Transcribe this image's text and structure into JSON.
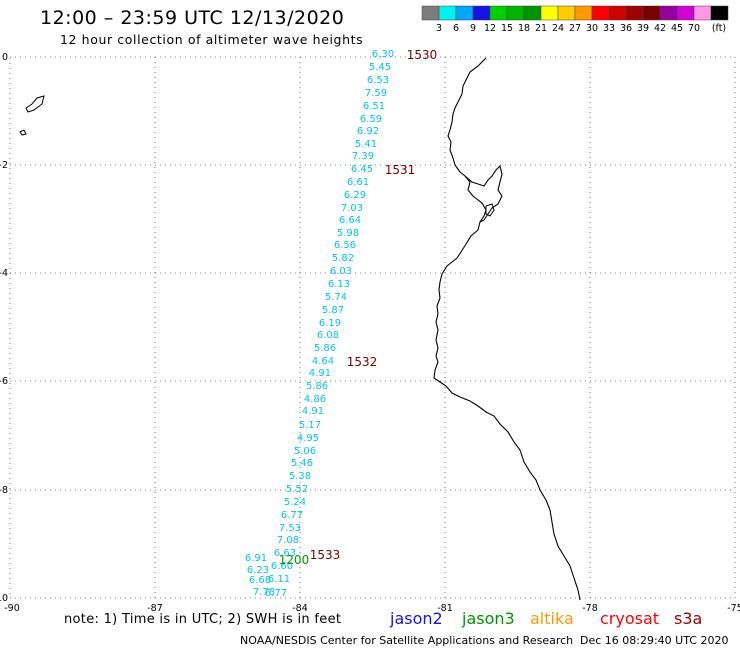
{
  "header": {
    "title": "12:00 – 23:59 UTC 12/13/2020",
    "subtitle": "12 hour collection of altimeter wave heights"
  },
  "colorbar": {
    "colors": [
      "#7d7d7d",
      "#00f2f2",
      "#00a8f5",
      "#1414e6",
      "#00d200",
      "#00b400",
      "#009600",
      "#ffff00",
      "#ffcc00",
      "#ff9900",
      "#ff0000",
      "#d20000",
      "#a00000",
      "#7a0000",
      "#9600a0",
      "#d200d2",
      "#ff96e6",
      "#000000"
    ],
    "labels": [
      "3",
      "6",
      "9",
      "12",
      "15",
      "18",
      "21",
      "24",
      "27",
      "30",
      "33",
      "36",
      "39",
      "42",
      "45",
      "70",
      "(ft)"
    ]
  },
  "axes": {
    "x_ticks": [
      "-90",
      "-87",
      "-84",
      "-81",
      "-78",
      "-75"
    ],
    "y_ticks": [
      "0",
      "-2",
      "-4",
      "-6",
      "-8",
      "-10"
    ]
  },
  "track_color": "#00c8e6",
  "time_color": "#7a0000",
  "start_color": "#009600",
  "wave_labels": [
    "6.30",
    "5.45",
    "6.53",
    "7.59",
    "6.51",
    "6.59",
    "6.92",
    "5.41",
    "7.39",
    "6.45",
    "6.61",
    "6.29",
    "7.03",
    "6.64",
    "5.98",
    "6.56",
    "5.82",
    "6.03",
    "6.13",
    "5.74",
    "5.87",
    "6.19",
    "6.08",
    "5.86",
    "4.64",
    "4.91",
    "5.86",
    "4.86",
    "4.91",
    "5.17",
    "4.95",
    "5.06",
    "5.46",
    "5.38",
    "5.52",
    "5.24",
    "6.77",
    "7.53",
    "7.08",
    "6.63",
    "6.60",
    "6.11",
    "6.77",
    "6.91",
    "6.23",
    "6.68",
    "7.78"
  ],
  "time_labels": [
    "1530",
    "1531",
    "1532",
    "1533"
  ],
  "start_label": "1200",
  "footer": {
    "note": "note: 1) Time is in UTC; 2) SWH is in feet",
    "satellites": [
      {
        "name": "jason2",
        "color": "#1414e6"
      },
      {
        "name": "jason3",
        "color": "#009600"
      },
      {
        "name": "altika",
        "color": "#ff9900"
      },
      {
        "name": "cryosat",
        "color": "#ff0000"
      },
      {
        "name": "s3a",
        "color": "#a00000"
      }
    ],
    "credit": "NOAA/NESDIS Center for Satellite Applications and Research",
    "timestamp": "Dec 16 08:29:40 UTC 2020"
  }
}
